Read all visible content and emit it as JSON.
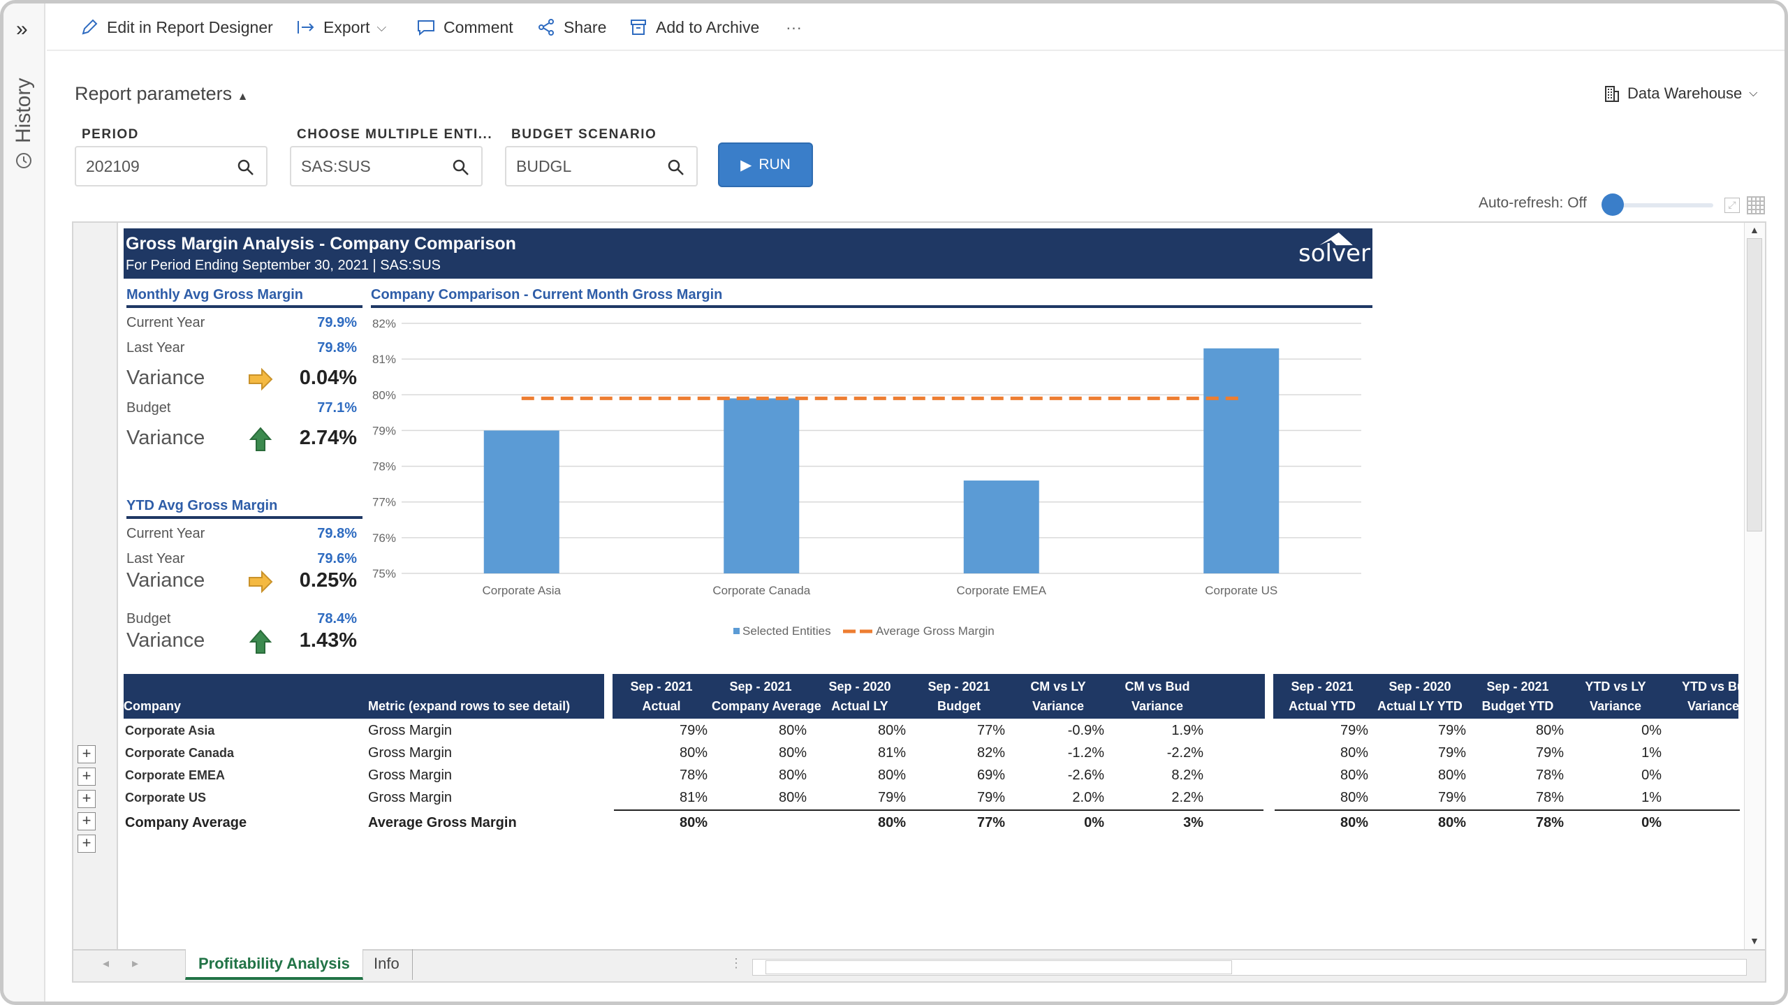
{
  "sidebar": {
    "label": "History"
  },
  "toolbar": {
    "edit": "Edit in Report Designer",
    "export": "Export",
    "comment": "Comment",
    "share": "Share",
    "archive": "Add to Archive",
    "more": "···"
  },
  "params": {
    "title": "Report parameters",
    "period_label": "PERIOD",
    "period_value": "202109",
    "entities_label": "CHOOSE MULTIPLE ENTI...",
    "entities_value": "SAS:SUS",
    "scenario_label": "BUDGET SCENARIO",
    "scenario_value": "BUDGL",
    "run": "RUN"
  },
  "datasource": "Data Warehouse",
  "autorefresh": "Auto-refresh: Off",
  "report": {
    "title": "Gross Margin Analysis - Company Comparison",
    "subtitle": "For Period Ending September 30, 2021 | SAS:SUS",
    "logo": "solver"
  },
  "monthly": {
    "header": "Monthly Avg Gross Margin",
    "cy_label": "Current Year",
    "cy": "79.9%",
    "ly_label": "Last Year",
    "ly": "79.8%",
    "var1_label": "Variance",
    "var1": "0.04%",
    "bud_label": "Budget",
    "bud": "77.1%",
    "var2_label": "Variance",
    "var2": "2.74%"
  },
  "ytd": {
    "header": "YTD Avg Gross Margin",
    "cy_label": "Current Year",
    "cy": "79.8%",
    "ly_label": "Last Year",
    "ly": "79.6%",
    "var1_label": "Variance",
    "var1": "0.25%",
    "bud_label": "Budget",
    "bud": "78.4%",
    "var2_label": "Variance",
    "var2": "1.43%"
  },
  "chart_data": {
    "type": "bar",
    "title": "Company Comparison - Current Month Gross Margin",
    "categories": [
      "Corporate Asia",
      "Corporate Canada",
      "Corporate EMEA",
      "Corporate US"
    ],
    "series": [
      {
        "name": "Selected Entities",
        "values": [
          79.0,
          79.9,
          77.6,
          81.3
        ],
        "color": "#5b9bd5"
      },
      {
        "name": "Average Gross Margin",
        "type": "line",
        "values": [
          79.9,
          79.9,
          79.9,
          79.9
        ],
        "color": "#ed7d31"
      }
    ],
    "ylim": [
      75,
      82
    ],
    "yticks": [
      "75%",
      "76%",
      "77%",
      "78%",
      "79%",
      "80%",
      "81%",
      "82%"
    ],
    "grid": true,
    "legend": "bottom"
  },
  "table": {
    "col_company": "Company",
    "col_metric": "Metric (expand rows to see detail)",
    "cm_headers": [
      [
        "Sep - 2021",
        "Actual"
      ],
      [
        "Sep - 2021",
        "Company Average"
      ],
      [
        "Sep - 2020",
        "Actual LY"
      ],
      [
        "Sep - 2021",
        "Budget"
      ],
      [
        "CM vs LY",
        "Variance"
      ],
      [
        "CM vs Bud",
        "Variance"
      ]
    ],
    "ytd_headers": [
      [
        "Sep - 2021",
        "Actual YTD"
      ],
      [
        "Sep - 2020",
        "Actual LY YTD"
      ],
      [
        "Sep - 2021",
        "Budget YTD"
      ],
      [
        "YTD vs LY",
        "Variance"
      ],
      [
        "YTD vs Bu",
        "Variance"
      ]
    ],
    "rows": [
      {
        "company": "Corporate Asia",
        "metric": "Gross Margin",
        "cm": [
          "79%",
          "80%",
          "80%",
          "77%",
          "-0.9%",
          "1.9%"
        ],
        "ytd": [
          "79%",
          "79%",
          "80%",
          "0%",
          ""
        ]
      },
      {
        "company": "Corporate Canada",
        "metric": "Gross Margin",
        "cm": [
          "80%",
          "80%",
          "81%",
          "82%",
          "-1.2%",
          "-2.2%"
        ],
        "ytd": [
          "80%",
          "79%",
          "79%",
          "1%",
          ""
        ]
      },
      {
        "company": "Corporate EMEA",
        "metric": "Gross Margin",
        "cm": [
          "78%",
          "80%",
          "80%",
          "69%",
          "-2.6%",
          "8.2%"
        ],
        "ytd": [
          "80%",
          "80%",
          "78%",
          "0%",
          ""
        ]
      },
      {
        "company": "Corporate US",
        "metric": "Gross Margin",
        "cm": [
          "81%",
          "80%",
          "79%",
          "79%",
          "2.0%",
          "2.2%"
        ],
        "ytd": [
          "80%",
          "79%",
          "78%",
          "1%",
          ""
        ]
      }
    ],
    "total": {
      "company": "Company Average",
      "metric": "Average Gross Margin",
      "cm": [
        "80%",
        "",
        "80%",
        "77%",
        "0%",
        "3%"
      ],
      "ytd": [
        "80%",
        "80%",
        "78%",
        "0%",
        ""
      ]
    }
  },
  "tabs": {
    "active": "Profitability Analysis",
    "other": "Info"
  }
}
